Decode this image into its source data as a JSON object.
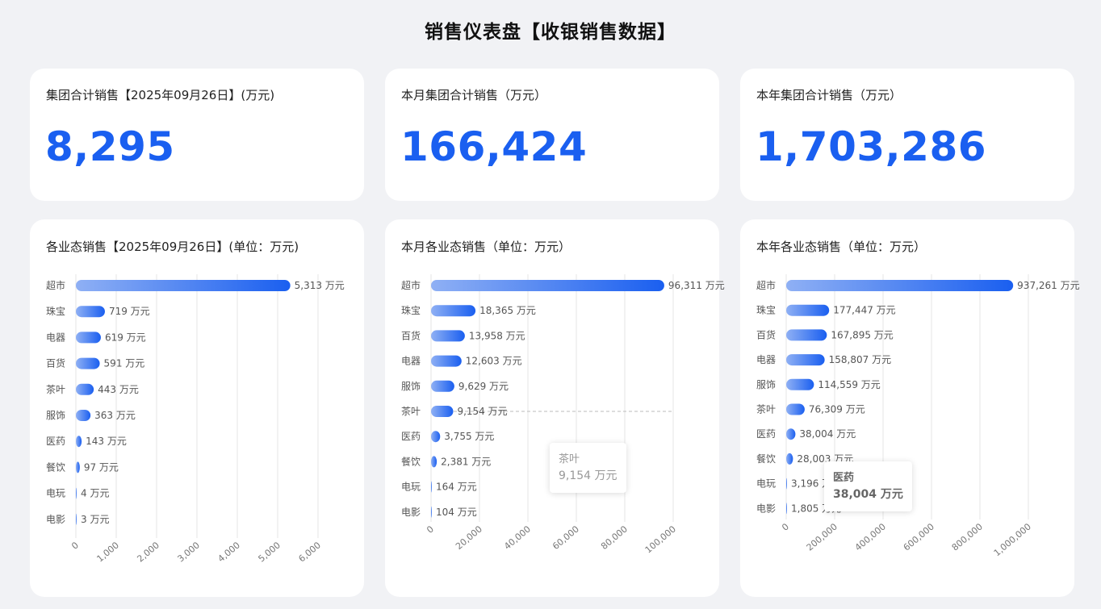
{
  "page": {
    "title": "销售仪表盘【收银销售数据】"
  },
  "kpis": [
    {
      "label": "集团合计销售【2025年09月26日】(万元)",
      "value": "8,295"
    },
    {
      "label": "本月集团合计销售（万元）",
      "value": "166,424"
    },
    {
      "label": "本年集团合计销售（万元）",
      "value": "1,703,286"
    }
  ],
  "chart_titles": [
    "各业态销售【2025年09月26日】(单位：万元)",
    "本月各业态销售（单位：万元）",
    "本年各业态销售（单位：万元）"
  ],
  "unit_suffix": " 万元",
  "colors": {
    "accent": "#1a5ff0",
    "bar_start": "#8fb0f4",
    "bar_end": "#1a5ff0"
  },
  "chart_data": [
    {
      "type": "bar",
      "orientation": "horizontal",
      "title": "各业态销售【2025年09月26日】(单位：万元)",
      "categories": [
        "超市",
        "珠宝",
        "电器",
        "百货",
        "茶叶",
        "服饰",
        "医药",
        "餐饮",
        "电玩",
        "电影"
      ],
      "values": [
        5313,
        719,
        619,
        591,
        443,
        363,
        143,
        97,
        4,
        3
      ],
      "value_labels": [
        "5,313 万元",
        "719 万元",
        "619 万元",
        "591 万元",
        "443 万元",
        "363 万元",
        "143 万元",
        "97 万元",
        "4 万元",
        "3 万元"
      ],
      "xlim": [
        0,
        6000
      ],
      "ticks": [
        "0",
        "1,000",
        "2,000",
        "3,000",
        "4,000",
        "5,000",
        "6,000"
      ],
      "grid": true
    },
    {
      "type": "bar",
      "orientation": "horizontal",
      "title": "本月各业态销售（单位：万元）",
      "categories": [
        "超市",
        "珠宝",
        "百货",
        "电器",
        "服饰",
        "茶叶",
        "医药",
        "餐饮",
        "电玩",
        "电影"
      ],
      "values": [
        96311,
        18365,
        13958,
        12603,
        9629,
        9154,
        3755,
        2381,
        164,
        104
      ],
      "value_labels": [
        "96,311 万元",
        "18,365 万元",
        "13,958 万元",
        "12,603 万元",
        "9,629 万元",
        "9,154 万元",
        "3,755 万元",
        "2,381 万元",
        "164 万元",
        "104 万元"
      ],
      "xlim": [
        0,
        100000
      ],
      "ticks": [
        "0",
        "20,000",
        "40,000",
        "60,000",
        "80,000",
        "100,000"
      ],
      "grid": true,
      "tooltip": {
        "category": "茶叶",
        "value": "9,154 万元"
      }
    },
    {
      "type": "bar",
      "orientation": "horizontal",
      "title": "本年各业态销售（单位：万元）",
      "categories": [
        "超市",
        "珠宝",
        "百货",
        "电器",
        "服饰",
        "茶叶",
        "医药",
        "餐饮",
        "电玩",
        "电影"
      ],
      "values": [
        937261,
        177447,
        167895,
        158807,
        114559,
        76309,
        38004,
        28003,
        3196,
        1805
      ],
      "value_labels": [
        "937,261 万元",
        "177,447 万元",
        "167,895 万元",
        "158,807 万元",
        "114,559 万元",
        "76,309 万元",
        "38,004 万元",
        "28,003 万元",
        "3,196 万元",
        "1,805 万元"
      ],
      "xlim": [
        0,
        1000000
      ],
      "ticks": [
        "0",
        "200,000",
        "400,000",
        "600,000",
        "800,000",
        "1,000,000"
      ],
      "grid": true,
      "tooltip": {
        "category": "医药",
        "value": "38,004 万元"
      }
    }
  ]
}
